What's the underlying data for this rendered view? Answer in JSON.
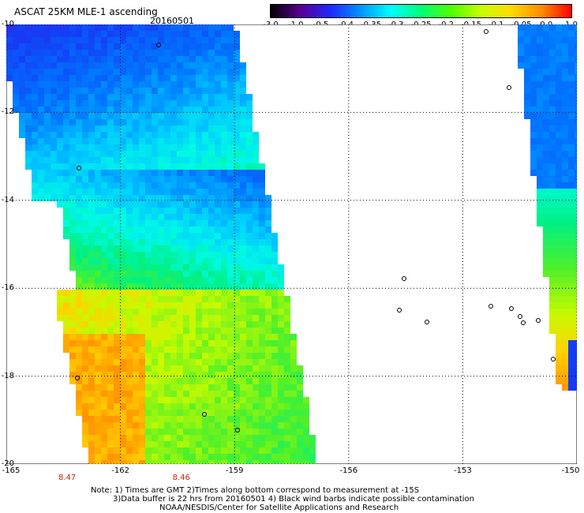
{
  "header": {
    "title": "ASCAT 25KM MLE-1 ascending",
    "date": "20160501"
  },
  "colorbar": {
    "labels": [
      "-3.0",
      "-1.0",
      "-0.5",
      "-0.4",
      "-0.35",
      "-0.3",
      "-0.25",
      "-0.2",
      "-0.15",
      "-0.1",
      "-0.05",
      "0.0",
      "1.0"
    ],
    "colors": [
      "#000000",
      "#5a0096",
      "#1e28ff",
      "#0096ff",
      "#00ffff",
      "#00ff78",
      "#50ff00",
      "#c8ff00",
      "#ffdc00",
      "#ff8c00",
      "#ff0000"
    ]
  },
  "axes": {
    "y_labels": [
      "-10",
      "-12",
      "-14",
      "-16",
      "-18",
      "-20"
    ],
    "x_labels": [
      "-165",
      "-162",
      "-159",
      "-156",
      "-153",
      "-150"
    ],
    "x_range": [
      -165,
      -150
    ],
    "y_range": [
      -20,
      -10
    ]
  },
  "times": [
    {
      "lon": -163.4,
      "text": "8.47"
    },
    {
      "lon": -160.4,
      "text": "8.46"
    }
  ],
  "notes": {
    "line1": "Note: 1) Times are GMT 2)Times along bottom correspond to measurement at -15S",
    "line2": "3)Data buffer is 22 hrs from 20160501 4) Black wind barbs indicate possible contamination",
    "line3": "NOAA/NESDIS/Center for Satellite Applications and Research"
  }
}
